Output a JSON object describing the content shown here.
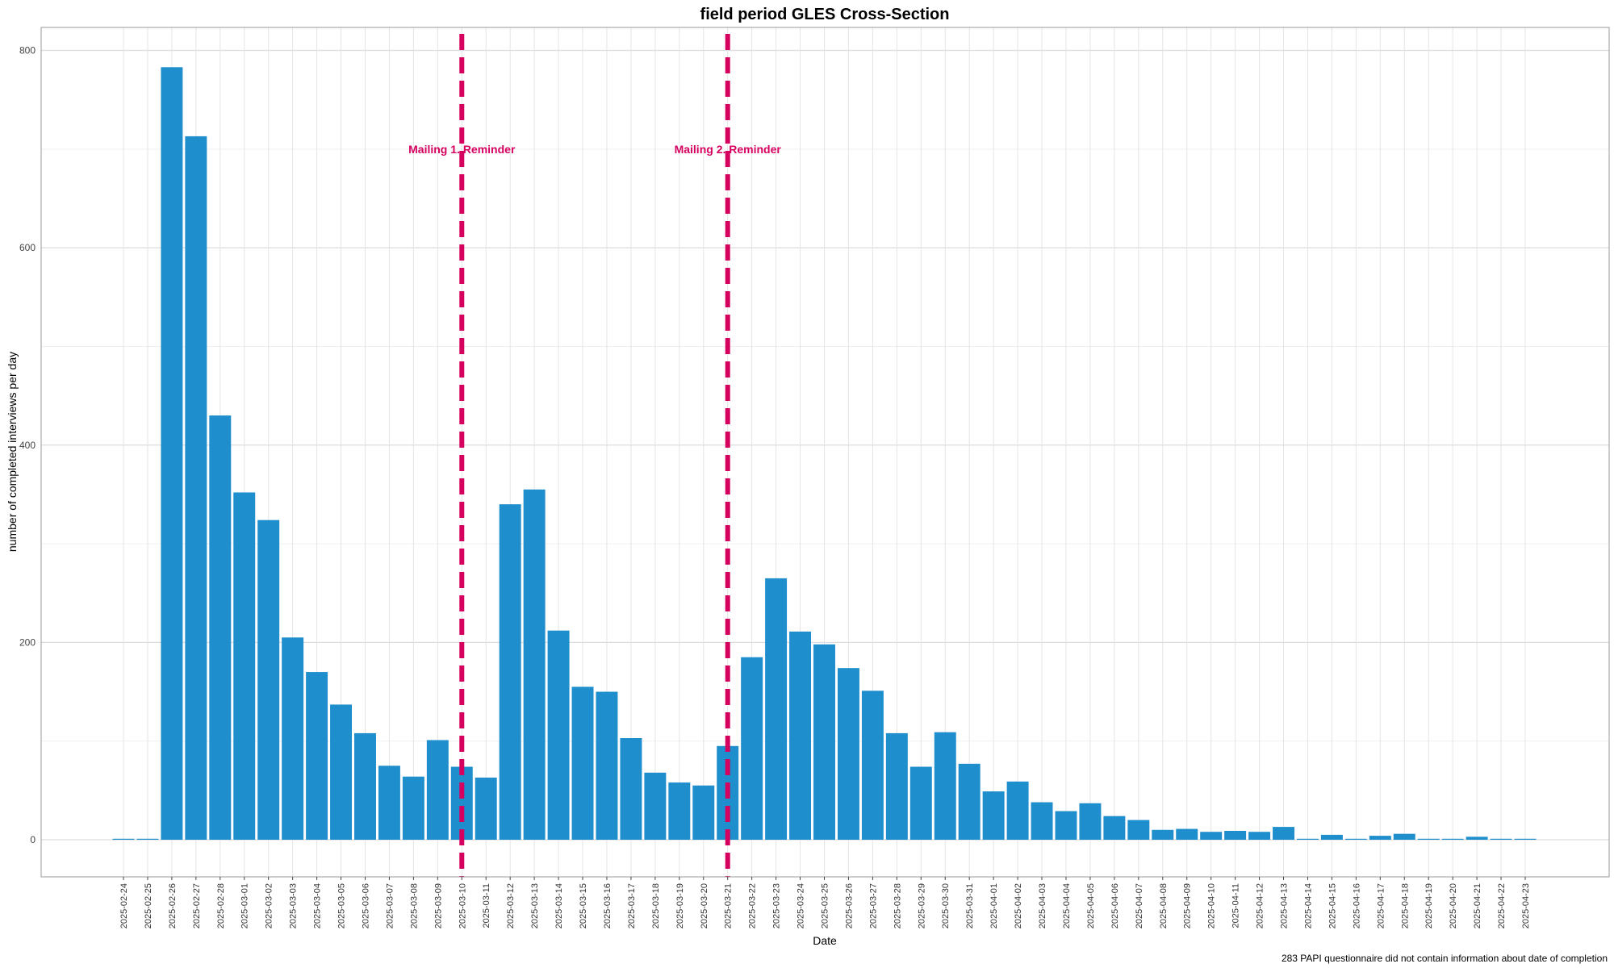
{
  "chart_data": {
    "type": "bar",
    "title": "field period GLES Cross-Section",
    "xlabel": "Date",
    "ylabel": "number of completed interviews per day",
    "ylim": [
      -40,
      840
    ],
    "yticks": [
      0,
      200,
      400,
      600,
      800
    ],
    "grid": true,
    "bar_color": "#1f8ecd",
    "categories": [
      "2025-02-24",
      "2025-02-25",
      "2025-02-26",
      "2025-02-27",
      "2025-02-28",
      "2025-03-01",
      "2025-03-02",
      "2025-03-03",
      "2025-03-04",
      "2025-03-05",
      "2025-03-06",
      "2025-03-07",
      "2025-03-08",
      "2025-03-09",
      "2025-03-10",
      "2025-03-11",
      "2025-03-12",
      "2025-03-13",
      "2025-03-14",
      "2025-03-15",
      "2025-03-16",
      "2025-03-17",
      "2025-03-18",
      "2025-03-19",
      "2025-03-20",
      "2025-03-21",
      "2025-03-22",
      "2025-03-23",
      "2025-03-24",
      "2025-03-25",
      "2025-03-26",
      "2025-03-27",
      "2025-03-28",
      "2025-03-29",
      "2025-03-30",
      "2025-03-31",
      "2025-04-01",
      "2025-04-02",
      "2025-04-03",
      "2025-04-04",
      "2025-04-05",
      "2025-04-06",
      "2025-04-07",
      "2025-04-08",
      "2025-04-09",
      "2025-04-10",
      "2025-04-11",
      "2025-04-12",
      "2025-04-13",
      "2025-04-14",
      "2025-04-15",
      "2025-04-16",
      "2025-04-17",
      "2025-04-18",
      "2025-04-19",
      "2025-04-20",
      "2025-04-21",
      "2025-04-22",
      "2025-04-23"
    ],
    "values": [
      1,
      1,
      783,
      713,
      430,
      352,
      324,
      205,
      170,
      137,
      108,
      75,
      64,
      101,
      74,
      63,
      340,
      355,
      212,
      155,
      150,
      103,
      68,
      58,
      55,
      95,
      185,
      265,
      211,
      198,
      174,
      151,
      108,
      74,
      109,
      77,
      49,
      59,
      38,
      29,
      37,
      24,
      20,
      10,
      11,
      8,
      9,
      8,
      13,
      1,
      5,
      1,
      4,
      6,
      1,
      1,
      3,
      1,
      1
    ],
    "annotations": [
      {
        "date": "2025-03-10",
        "label": "Mailing 1. Reminder",
        "y": 700
      },
      {
        "date": "2025-03-21",
        "label": "Mailing 2. Reminder",
        "y": 700
      }
    ],
    "annotation_color": "#d6005f",
    "caption": "283 PAPI questionnaire did not contain information about date of completion"
  }
}
